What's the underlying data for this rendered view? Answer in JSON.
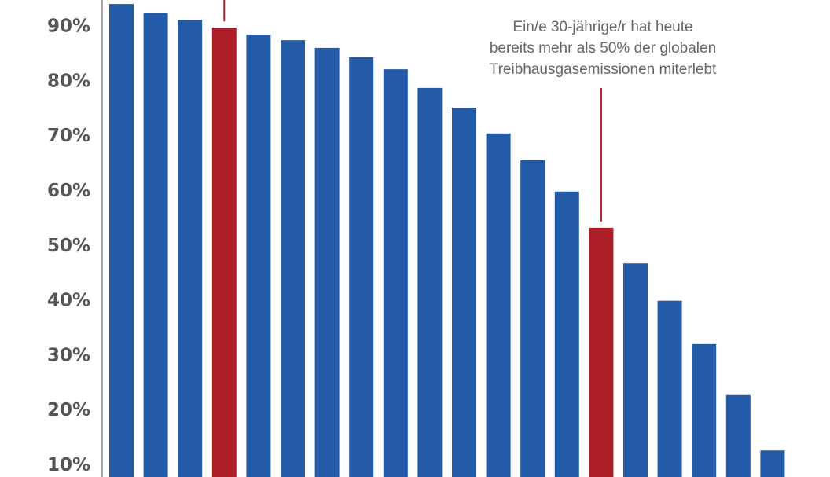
{
  "chart_data": {
    "type": "bar",
    "title": "",
    "xlabel": "",
    "ylabel": "",
    "ylim": [
      0,
      95
    ],
    "yticks": [
      10,
      20,
      30,
      40,
      50,
      60,
      70,
      80,
      90
    ],
    "ytick_labels": [
      "10%",
      "20%",
      "30%",
      "40%",
      "50%",
      "60%",
      "70%",
      "80%",
      "90%"
    ],
    "values": [
      93.8,
      92.2,
      90.9,
      89.5,
      88.2,
      87.2,
      85.8,
      84.1,
      81.9,
      78.5,
      74.9,
      70.2,
      65.3,
      59.6,
      53.0,
      46.5,
      39.7,
      31.8,
      22.5,
      12.4
    ],
    "highlighted": [
      3,
      14
    ],
    "colors": {
      "bar": "#235ba8",
      "highlight": "#ad1f27",
      "axis": "#888888"
    },
    "annotation": {
      "bar_index": 14,
      "lines": [
        "Ein/e 30-jährige/r hat heute",
        "bereits mehr als 50% der globalen",
        "Treibhausgasemissionen miterlebt"
      ]
    }
  }
}
